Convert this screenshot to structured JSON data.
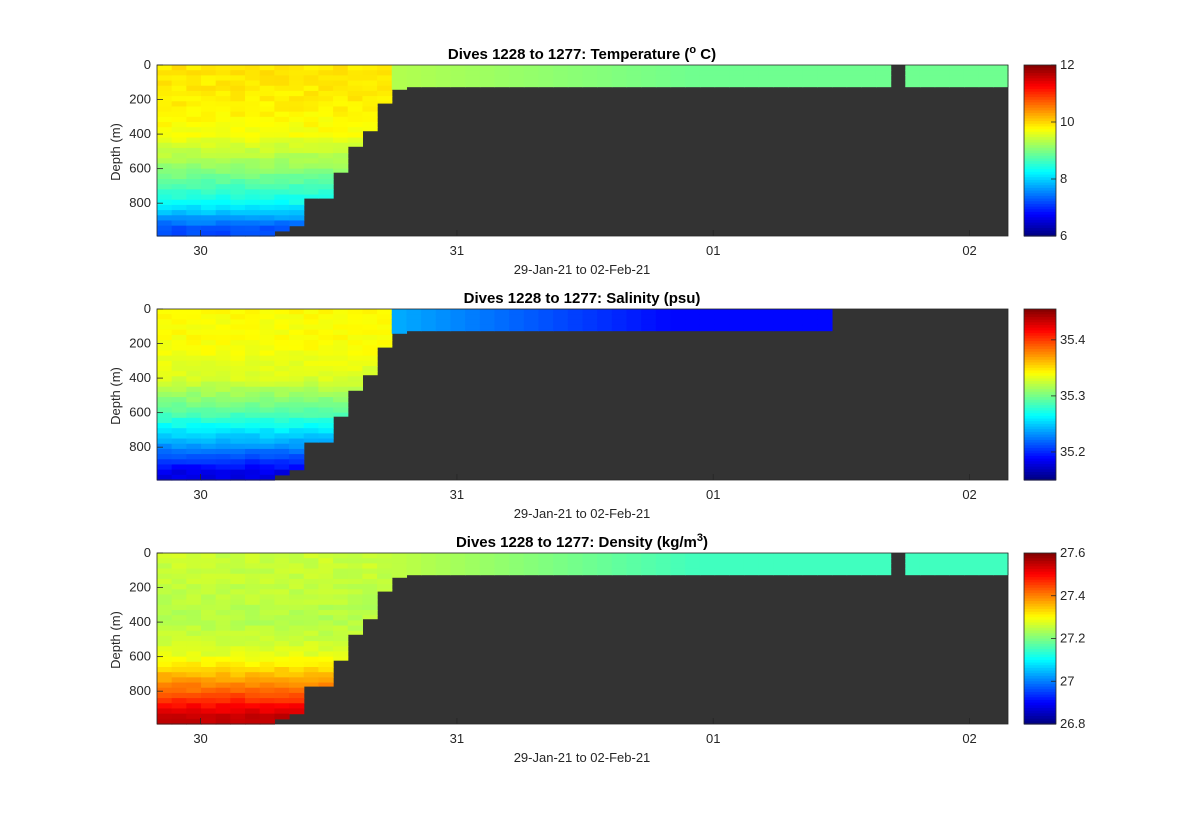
{
  "colors": {
    "bathymetry": "#333333",
    "axis": "#262626",
    "colormap": "jet"
  },
  "chart_data": [
    {
      "type": "heatmap",
      "title": "Dives 1228 to 1277: Temperature (",
      "title_sup": "o",
      "title_suffix": " C)",
      "xlabel": "29-Jan-21 to 02-Feb-21",
      "ylabel": "Depth (m)",
      "x_ticks": [
        "30",
        "31",
        "01",
        "02"
      ],
      "x_tick_days": [
        30,
        31,
        32,
        33
      ],
      "xlim_days": [
        29.83,
        33.15
      ],
      "y_ticks": [
        "0",
        "200",
        "400",
        "600",
        "800"
      ],
      "y_tick_values": [
        0,
        200,
        400,
        600,
        800
      ],
      "ylim": [
        0,
        990
      ],
      "y_reversed": true,
      "colorbar": {
        "ticks": [
          "6",
          "8",
          "10",
          "12"
        ],
        "tick_values": [
          6,
          8,
          10,
          12
        ],
        "range": [
          6,
          12
        ]
      },
      "surface_value": 8.9,
      "inshelf_value": 9.3,
      "gap_day": [
        32.68,
        32.74
      ],
      "profiles": [
        {
          "depth_m": 0,
          "value": 9.9
        },
        {
          "depth_m": 200,
          "value": 9.85
        },
        {
          "depth_m": 400,
          "value": 9.7
        },
        {
          "depth_m": 600,
          "value": 9.1
        },
        {
          "depth_m": 800,
          "value": 8.3
        },
        {
          "depth_m": 950,
          "value": 7.2
        }
      ]
    },
    {
      "type": "heatmap",
      "title": "Dives 1228 to 1277: Salinity (psu)",
      "title_sup": "",
      "title_suffix": "",
      "xlabel": "29-Jan-21 to 02-Feb-21",
      "ylabel": "Depth (m)",
      "x_ticks": [
        "30",
        "31",
        "01",
        "02"
      ],
      "x_tick_days": [
        30,
        31,
        32,
        33
      ],
      "xlim_days": [
        29.83,
        33.15
      ],
      "y_ticks": [
        "0",
        "200",
        "400",
        "600",
        "800"
      ],
      "y_tick_values": [
        0,
        200,
        400,
        600,
        800
      ],
      "ylim": [
        0,
        990
      ],
      "y_reversed": true,
      "colorbar": {
        "ticks": [
          "35.2",
          "35.3",
          "35.4"
        ],
        "tick_values": [
          35.2,
          35.3,
          35.4
        ],
        "range": [
          35.15,
          35.455
        ]
      },
      "surface_value": 35.19,
      "inshelf_value": 35.24,
      "fresh_tongue_end_day": 32.48,
      "profiles": [
        {
          "depth_m": 0,
          "value": 35.34
        },
        {
          "depth_m": 200,
          "value": 35.34
        },
        {
          "depth_m": 400,
          "value": 35.33
        },
        {
          "depth_m": 600,
          "value": 35.29
        },
        {
          "depth_m": 800,
          "value": 35.23
        },
        {
          "depth_m": 950,
          "value": 35.18
        }
      ]
    },
    {
      "type": "heatmap",
      "title": "Dives 1228 to 1277: Density (kg/m",
      "title_sup": "3",
      "title_suffix": ")",
      "xlabel": "29-Jan-21 to 02-Feb-21",
      "ylabel": "Depth (m)",
      "x_ticks": [
        "30",
        "31",
        "01",
        "02"
      ],
      "x_tick_days": [
        30,
        31,
        32,
        33
      ],
      "xlim_days": [
        29.83,
        33.15
      ],
      "y_ticks": [
        "0",
        "200",
        "400",
        "600",
        "800"
      ],
      "y_tick_values": [
        0,
        200,
        400,
        600,
        800
      ],
      "ylim": [
        0,
        990
      ],
      "y_reversed": true,
      "colorbar": {
        "ticks": [
          "26.8",
          "27",
          "27.2",
          "27.4",
          "27.6"
        ],
        "tick_values": [
          26.8,
          27.0,
          27.2,
          27.4,
          27.6
        ],
        "range": [
          26.8,
          27.6
        ]
      },
      "surface_value": 27.15,
      "inshelf_value": 27.25,
      "gap_day": [
        32.68,
        32.74
      ],
      "profiles": [
        {
          "depth_m": 0,
          "value": 27.26
        },
        {
          "depth_m": 200,
          "value": 27.25
        },
        {
          "depth_m": 400,
          "value": 27.24
        },
        {
          "depth_m": 600,
          "value": 27.28
        },
        {
          "depth_m": 800,
          "value": 27.42
        },
        {
          "depth_m": 950,
          "value": 27.55
        }
      ]
    }
  ],
  "bathymetry": {
    "seafloor_steps": [
      {
        "day": 30.24,
        "depth_m": 990
      },
      {
        "day": 30.31,
        "depth_m": 960
      },
      {
        "day": 30.37,
        "depth_m": 930
      },
      {
        "day": 30.43,
        "depth_m": 770
      },
      {
        "day": 30.5,
        "depth_m": 620
      },
      {
        "day": 30.56,
        "depth_m": 470
      },
      {
        "day": 30.62,
        "depth_m": 380
      },
      {
        "day": 30.69,
        "depth_m": 220
      },
      {
        "day": 30.75,
        "depth_m": 140
      },
      {
        "day": 30.82,
        "depth_m": 125
      },
      {
        "day": 33.15,
        "depth_m": 125
      }
    ]
  }
}
